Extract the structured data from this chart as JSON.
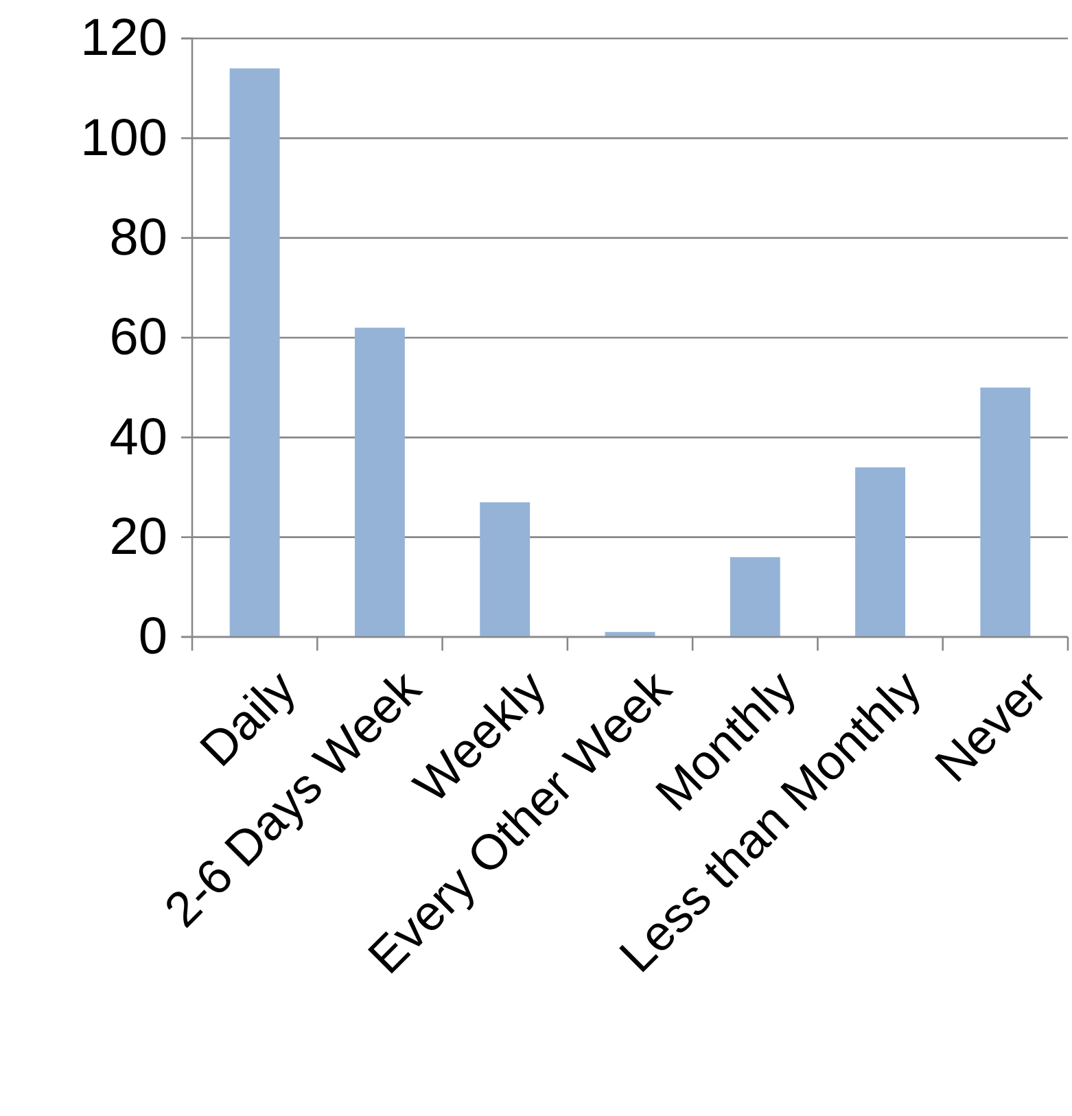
{
  "chart_data": {
    "type": "bar",
    "categories": [
      "Daily",
      "2-6 Days Week",
      "Weekly",
      "Every Other Week",
      "Monthly",
      "Less than Monthly",
      "Never"
    ],
    "values": [
      114,
      62,
      27,
      1,
      16,
      34,
      50
    ],
    "color": "#95b3d7",
    "ylim": [
      0,
      120
    ],
    "yticks": [
      0,
      20,
      40,
      60,
      80,
      100,
      120
    ],
    "grid": "y"
  }
}
